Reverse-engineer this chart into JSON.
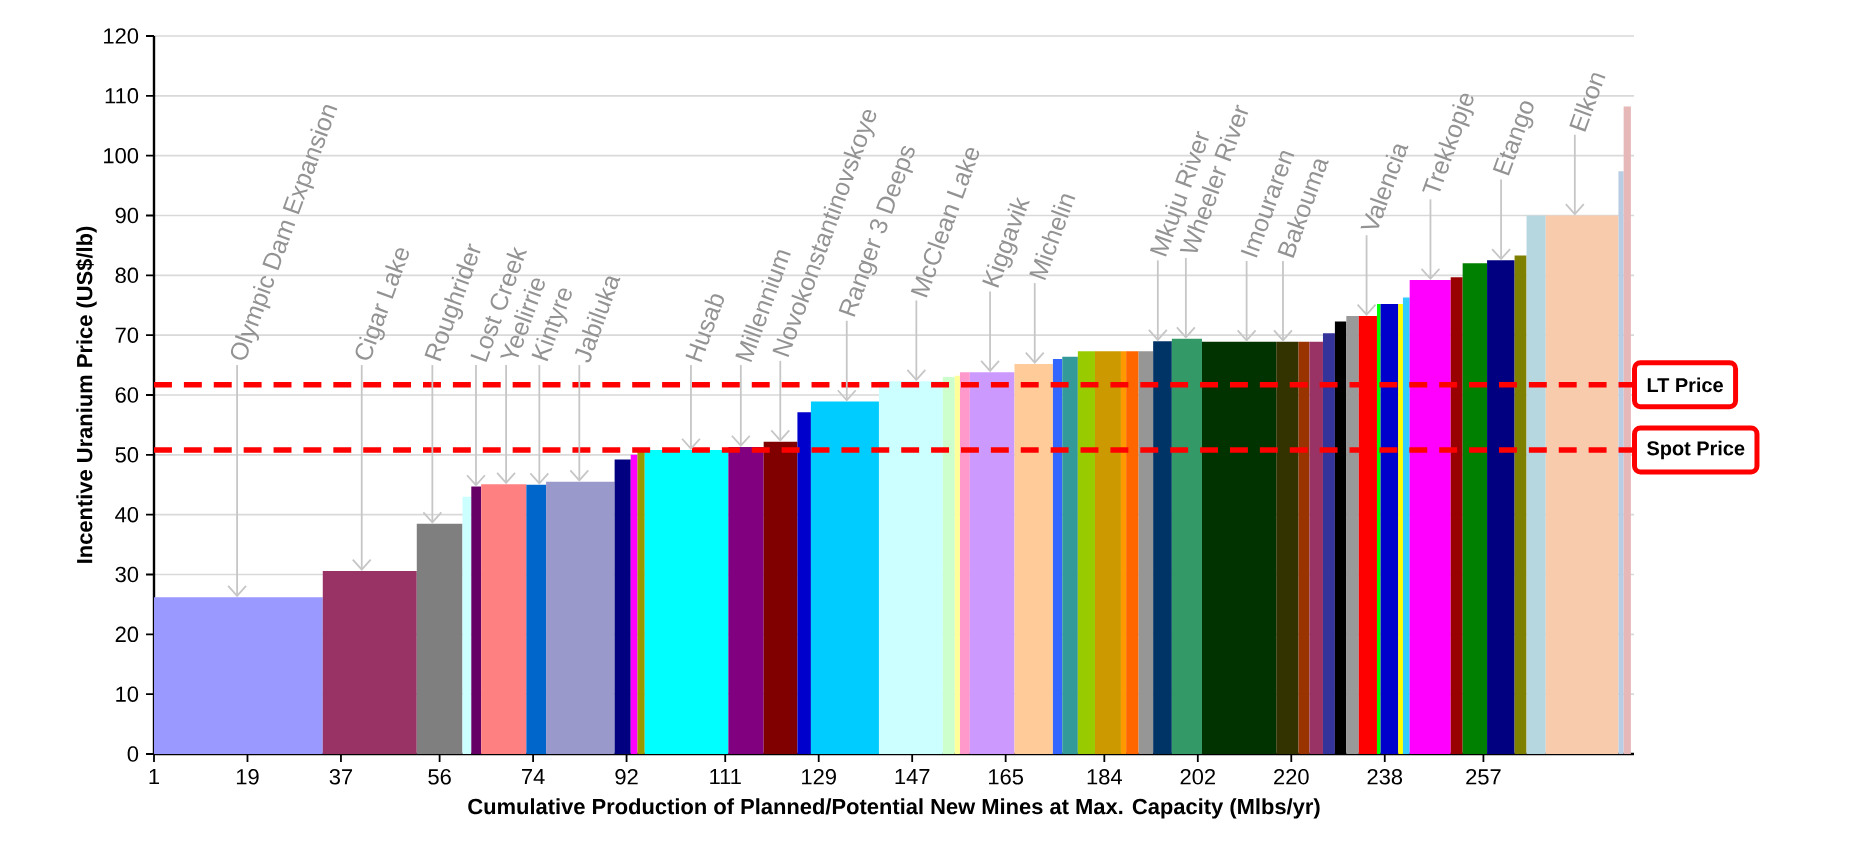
{
  "chart_data": {
    "type": "histogram",
    "xlabel": "Cumulative Production of Planned/Potential New Mines at Max. Capacity (Mlbs/yr)",
    "ylabel": "Incentive Uranium Price (US$/lb)",
    "bins": [
      1,
      33.5,
      51.6,
      60.4,
      62.1,
      64.0,
      72.7,
      76.5,
      89.7,
      92.8,
      94.1,
      95.5,
      111.6,
      118.4,
      124.9,
      127.5,
      140.6,
      152.9,
      155.2,
      156.2,
      158.1,
      166.7,
      174.1,
      175.9,
      178.9,
      182.2,
      187.2,
      188.2,
      190.6,
      193.4,
      197.0,
      202.8,
      217.1,
      221.4,
      223.5,
      226.1,
      228.4,
      230.6,
      233.0,
      236.5,
      237.2,
      240.6,
      241.5,
      242.8,
      250.7,
      253.0,
      257.7,
      263.0,
      265.3,
      269.0,
      283.0,
      284.0,
      285.4
    ],
    "values": [
      26.2,
      30.6,
      38.5,
      43,
      44.7,
      45.1,
      45,
      45.5,
      49.2,
      50,
      50.5,
      50.8,
      51.3,
      52.2,
      57.1,
      58.9,
      62.3,
      63,
      63.2,
      63.8,
      63.8,
      65.2,
      66,
      66.4,
      67.3,
      67.3,
      67.3,
      67.3,
      67.3,
      69,
      69.4,
      68.9,
      68.9,
      68.9,
      68.9,
      70.3,
      72.3,
      73.2,
      73.2,
      75.2,
      75.2,
      75.2,
      76.3,
      79.2,
      79.7,
      82,
      82.5,
      83.3,
      90,
      90,
      97.4,
      108.2
    ],
    "colors": [
      "#9999ff",
      "#993366",
      "#7f7f7f",
      "#ccffff",
      "#660066",
      "#ff8080",
      "#0066cc",
      "#9999cc",
      "#000080",
      "#ff00ff",
      "#999900",
      "#00ffff",
      "#800080",
      "#800000",
      "#0000cc",
      "#00ccff",
      "#ccffff",
      "#ccffcc",
      "#ffff99",
      "#ff99cc",
      "#cc99ff",
      "#ffcc99",
      "#3366ff",
      "#339999",
      "#99cc00",
      "#cc9900",
      "#ff9900",
      "#ff6600",
      "#969696",
      "#003366",
      "#339966",
      "#003300",
      "#333300",
      "#993300",
      "#993366",
      "#333399",
      "#000000",
      "#999999",
      "#ff0000",
      "#00ff00",
      "#0000cc",
      "#ffff00",
      "#33ccff",
      "#ff00ff",
      "#990000",
      "#008000",
      "#000080",
      "#808000",
      "#b7d7e0",
      "#f8cbad",
      "#b8cce4",
      "#e6b9b8"
    ],
    "xlim": [
      1,
      286
    ],
    "ylim": [
      0,
      120
    ],
    "xticks": [
      1,
      19,
      37,
      56,
      74,
      92,
      111,
      129,
      147,
      165,
      184,
      202,
      220,
      238,
      257
    ],
    "yticks": [
      0,
      10,
      20,
      30,
      40,
      50,
      60,
      70,
      80,
      90,
      100,
      110,
      120
    ],
    "grid": "y",
    "ref_lines": [
      {
        "axis": "y",
        "value": 61.7,
        "label": "LT Price",
        "color": "#ff0000",
        "line_style": "dashed"
      },
      {
        "axis": "y",
        "value": 50.8,
        "label": "Spot Price",
        "color": "#ff0000",
        "line_style": "dashed"
      }
    ],
    "annotations": [
      {
        "text": "Olympic Dam Expansion",
        "x": 17,
        "y": 26.2
      },
      {
        "text": "Cigar Lake",
        "x": 41,
        "y": 30.6
      },
      {
        "text": "Roughrider",
        "x": 54.6,
        "y": 38.5
      },
      {
        "text": "Lost Creek",
        "x": 63,
        "y": 44.7
      },
      {
        "text": "Yeelirrie",
        "x": 68.8,
        "y": 45.1
      },
      {
        "text": "Kintyre",
        "x": 75.2,
        "y": 45
      },
      {
        "text": "Jabiluka",
        "x": 82.9,
        "y": 45.5
      },
      {
        "text": "Husab",
        "x": 104.4,
        "y": 50.8
      },
      {
        "text": "Millennium",
        "x": 114,
        "y": 51.3
      },
      {
        "text": "Novokonstantinovskoye",
        "x": 121.6,
        "y": 52.2
      },
      {
        "text": "Ranger 3 Deeps",
        "x": 134.4,
        "y": 58.9
      },
      {
        "text": "McClean Lake",
        "x": 147.8,
        "y": 62.3
      },
      {
        "text": "Kiggavik",
        "x": 162,
        "y": 63.8
      },
      {
        "text": "Michelin",
        "x": 170.6,
        "y": 65.2
      },
      {
        "text": "Mkuju River",
        "x": 194.3,
        "y": 69
      },
      {
        "text": "Wheeler River",
        "x": 199.7,
        "y": 69.4
      },
      {
        "text": "Imouraren",
        "x": 211.4,
        "y": 68.9
      },
      {
        "text": "Bakouma",
        "x": 218.4,
        "y": 68.9
      },
      {
        "text": "Valencia",
        "x": 234.5,
        "y": 73.2
      },
      {
        "text": "Trekkopje",
        "x": 246.8,
        "y": 79.2
      },
      {
        "text": "Etango",
        "x": 260.4,
        "y": 82.5
      },
      {
        "text": "Elkon",
        "x": 274.6,
        "y": 90
      }
    ]
  }
}
